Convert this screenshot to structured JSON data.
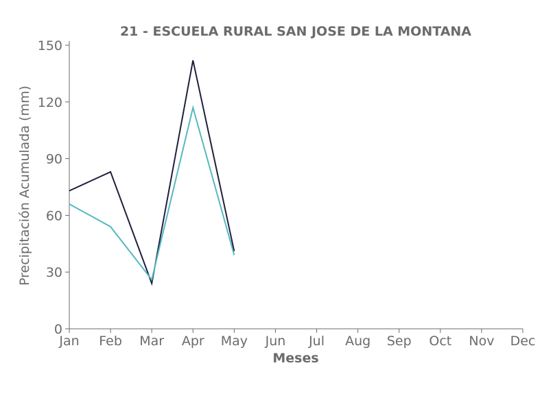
{
  "chart_data": {
    "type": "line",
    "title": "21 - ESCUELA RURAL SAN JOSE DE LA MONTANA",
    "xlabel": "Meses",
    "ylabel": "Precipitación Acumulada (mm)",
    "categories": [
      "Jan",
      "Feb",
      "Mar",
      "Apr",
      "May",
      "Jun",
      "Jul",
      "Aug",
      "Sep",
      "Oct",
      "Nov",
      "Dec"
    ],
    "ylim": [
      0,
      150
    ],
    "yticks": [
      0,
      30,
      60,
      90,
      120,
      150
    ],
    "grid": false,
    "series": [
      {
        "color": "#1f1f3d",
        "values": [
          73,
          83,
          24,
          142,
          41,
          null,
          null,
          null,
          null,
          null,
          null,
          null
        ]
      },
      {
        "color": "#56b8c0",
        "values": [
          66,
          54,
          26,
          117,
          39,
          null,
          null,
          null,
          null,
          null,
          null,
          null
        ]
      }
    ]
  }
}
